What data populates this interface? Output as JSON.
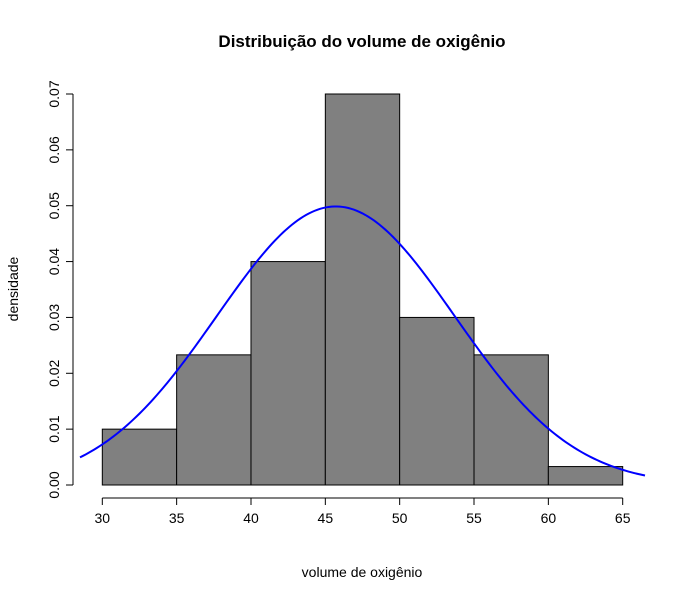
{
  "chart_data": {
    "type": "bar",
    "title": "Distribuição do volume de oxigênio",
    "xlabel": "volume de oxigênio",
    "ylabel": "densidade",
    "bins": [
      {
        "from": 30,
        "to": 35,
        "density": 0.01
      },
      {
        "from": 35,
        "to": 40,
        "density": 0.0233
      },
      {
        "from": 40,
        "to": 45,
        "density": 0.04
      },
      {
        "from": 45,
        "to": 50,
        "density": 0.07
      },
      {
        "from": 50,
        "to": 55,
        "density": 0.03
      },
      {
        "from": 55,
        "to": 60,
        "density": 0.0233
      },
      {
        "from": 60,
        "to": 65,
        "density": 0.0033
      }
    ],
    "normal_curve": {
      "mean": 45.7,
      "sd": 8.0,
      "color": "#0000ff"
    },
    "bar_color": "#808080",
    "xlim": [
      28.5,
      66.5
    ],
    "ylim": [
      0,
      0.07
    ],
    "x_ticks": [
      "30",
      "35",
      "40",
      "45",
      "50",
      "55",
      "60",
      "65"
    ],
    "y_ticks": [
      "0.00",
      "0.01",
      "0.02",
      "0.03",
      "0.04",
      "0.05",
      "0.06",
      "0.07"
    ],
    "grid": false,
    "legend": "none"
  }
}
